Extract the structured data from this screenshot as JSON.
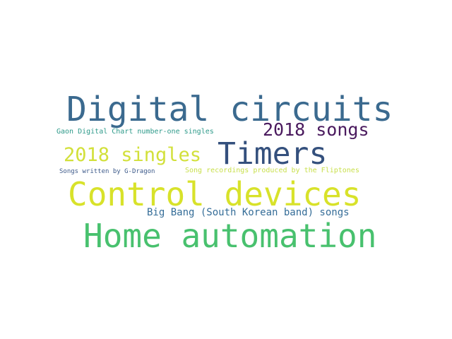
{
  "words": {
    "digital_circuits": {
      "text": "Digital circuits",
      "color": "#3b6a8f"
    },
    "gaon": {
      "text": "Gaon Digital Chart number-one singles",
      "color": "#2e9a8a"
    },
    "songs_2018": {
      "text": "2018 songs",
      "color": "#4a1a5e"
    },
    "singles_2018": {
      "text": "2018 singles",
      "color": "#d2e03a"
    },
    "timers": {
      "text": "Timers",
      "color": "#34507d"
    },
    "g_dragon": {
      "text": "Songs written by G-Dragon",
      "color": "#3d5a8a"
    },
    "fliptones": {
      "text": "Song recordings produced by the Fliptones",
      "color": "#c8df4a"
    },
    "control_devices": {
      "text": "Control devices",
      "color": "#d8e22a"
    },
    "big_bang": {
      "text": "Big Bang (South Korean band) songs",
      "color": "#356d98"
    },
    "home_automation": {
      "text": "Home automation",
      "color": "#48c16e"
    }
  }
}
